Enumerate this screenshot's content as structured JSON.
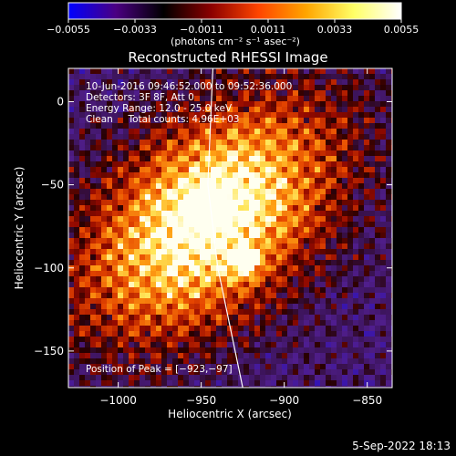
{
  "chart_data": {
    "type": "heatmap",
    "title": "Reconstructed RHESSI Image",
    "xlabel": "Heliocentric X (arcsec)",
    "ylabel": "Heliocentric Y (arcsec)",
    "xlim": [
      -1030,
      -835
    ],
    "ylim": [
      -172,
      20
    ],
    "x_ticks": [
      -1000,
      -950,
      -900,
      -850
    ],
    "x_tick_labels": [
      "−1000",
      "−950",
      "−900",
      "−850"
    ],
    "y_ticks": [
      0,
      -50,
      -100,
      -150
    ],
    "y_tick_labels": [
      "0",
      "−50",
      "−100",
      "−150"
    ],
    "colorbar": {
      "min": -0.0055,
      "max": 0.0055,
      "ticks": [
        -0.0055,
        -0.0033,
        -0.0011,
        0.0011,
        0.0033,
        0.0055
      ],
      "tick_labels": [
        "−0.0055",
        "−0.0033",
        "−0.0011",
        "0.0011",
        "0.0033",
        "0.0055"
      ],
      "unit_label": "(photons cm⁻² s⁻¹ asec⁻²)",
      "colors": [
        "#0000ff",
        "#4b0082",
        "#000000",
        "#8b0000",
        "#ff4500",
        "#ffa500",
        "#ffff66",
        "#ffffff"
      ]
    },
    "annotations": [
      "10-Jun-2016 09:46:52.000 to 09:52:36.000",
      "Detectors: 3F 8F, Att 0",
      "Energy Range: 12.0 - 25.0 keV",
      "Clean     Total counts: 4.96E+03"
    ],
    "peak_label": "Position of Peak = [−923,−97]",
    "peak": [
      -923,
      -97
    ],
    "limb_curve": [
      [
        -943,
        20
      ],
      [
        -946,
        -50
      ],
      [
        -940,
        -100
      ],
      [
        -925,
        -172
      ]
    ],
    "timestamp": "5-Sep-2022 18:13"
  }
}
